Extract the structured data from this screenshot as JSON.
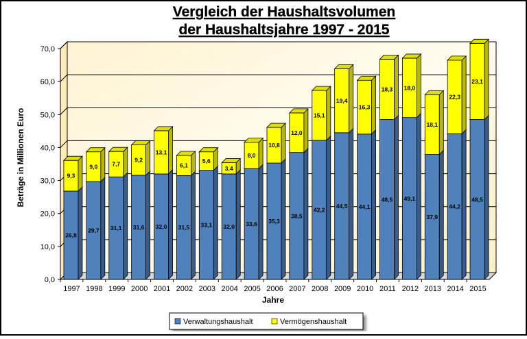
{
  "chart_data": {
    "type": "bar",
    "stacked": true,
    "title_lines": [
      "Vergleich der Haushaltsvolumen",
      "der Haushaltsjahre 1997 - 2015"
    ],
    "xlabel": "Jahre",
    "ylabel": "Beträge in Millionen Euro",
    "ylim": [
      0,
      70
    ],
    "yticks": [
      "0,0",
      "10,0",
      "20,0",
      "30,0",
      "40,0",
      "50,0",
      "60,0",
      "70,0"
    ],
    "grid": true,
    "legend_position": "bottom",
    "categories": [
      "1997",
      "1998",
      "1999",
      "2000",
      "2001",
      "2002",
      "2003",
      "2004",
      "2005",
      "2006",
      "2007",
      "2008",
      "2009",
      "2010",
      "2011",
      "2012",
      "2013",
      "2014",
      "2015"
    ],
    "series": [
      {
        "name": "Verwaltungshaushalt",
        "color": "#4f81bd",
        "values": [
          26.8,
          29.7,
          31.1,
          31.6,
          32.0,
          31.5,
          33.1,
          32.0,
          33.6,
          35.3,
          38.5,
          42.2,
          44.5,
          44.1,
          48.5,
          49.1,
          37.9,
          44.2,
          48.5
        ],
        "labels": [
          "26,8",
          "29,7",
          "31,1",
          "31,6",
          "32,0",
          "31,5",
          "33,1",
          "32,0",
          "33,6",
          "35,3",
          "38,5",
          "42,2",
          "44,5",
          "44,1",
          "48,5",
          "49,1",
          "37,9",
          "44,2",
          "48,5"
        ]
      },
      {
        "name": "Vermögenshaushalt",
        "color": "#ffff00",
        "values": [
          9.3,
          9.0,
          7.7,
          9.2,
          13.1,
          6.1,
          5.6,
          3.4,
          8.0,
          10.8,
          12.0,
          15.1,
          19.4,
          16.3,
          18.3,
          18.0,
          18.1,
          22.3,
          23.1
        ],
        "labels": [
          "9,3",
          "9,0",
          "7,7",
          "9,2",
          "13,1",
          "6,1",
          "5,6",
          "3,4",
          "8,0",
          "10,8",
          "12,0",
          "15,1",
          "19,4",
          "16,3",
          "18,3",
          "18,0",
          "18,1",
          "22,3",
          "23,1"
        ]
      }
    ]
  }
}
